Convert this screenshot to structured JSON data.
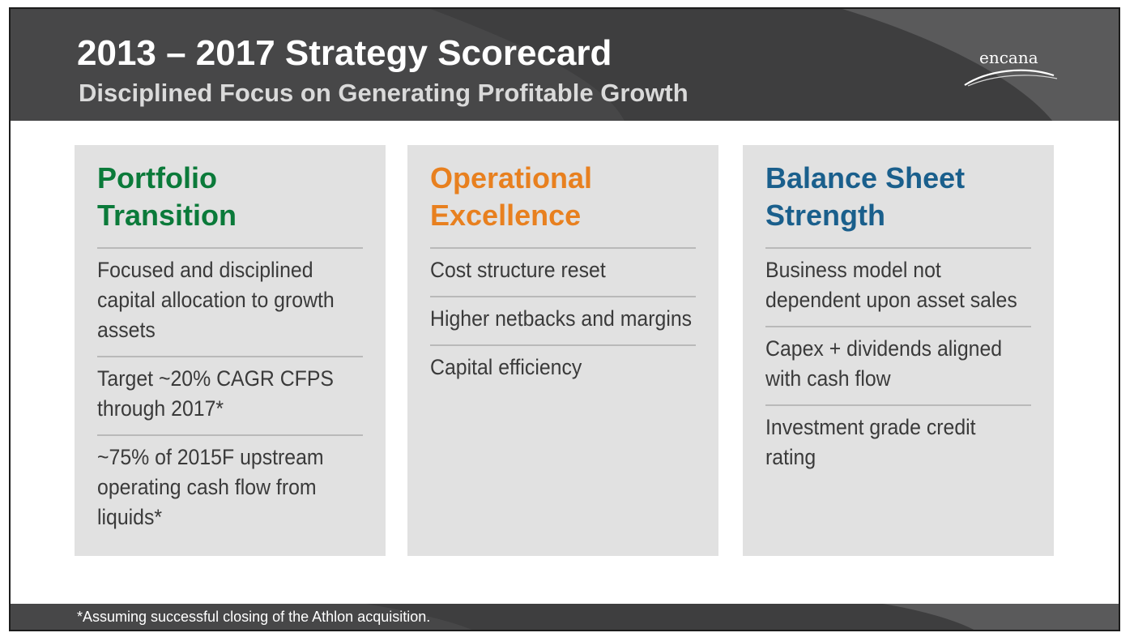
{
  "header": {
    "title": "2013 – 2017 Strategy Scorecard",
    "subtitle": "Disciplined Focus on Generating Profitable Growth",
    "logo_text": "encana"
  },
  "columns": [
    {
      "title_lines": [
        "Portfolio",
        "Transition"
      ],
      "title_color": "#0b7a3a",
      "items": [
        "Focused and disciplined capital allocation to growth assets",
        "Target ~20% CAGR CFPS through 2017*",
        "~75% of 2015F upstream operating cash flow from liquids*"
      ]
    },
    {
      "title_lines": [
        "Operational",
        "Excellence"
      ],
      "title_color": "#e8801f",
      "items": [
        "Cost structure reset",
        "Higher netbacks and margins",
        "Capital efficiency"
      ]
    },
    {
      "title_lines": [
        "Balance Sheet",
        "Strength"
      ],
      "title_color": "#1a5f8c",
      "items": [
        "Business model not dependent upon asset sales",
        "Capex + dividends aligned with cash flow",
        "Investment grade credit rating"
      ]
    }
  ],
  "footer": {
    "footnote": "*Assuming successful closing of the Athlon acquisition."
  }
}
